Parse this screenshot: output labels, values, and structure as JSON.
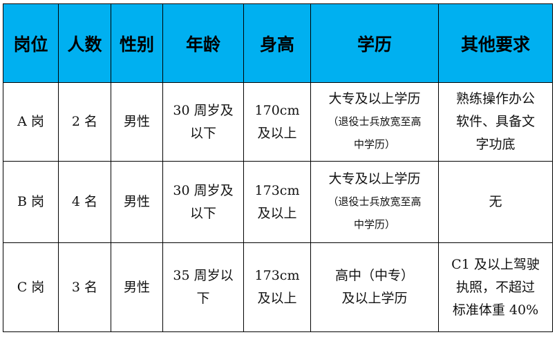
{
  "header_color": "#00B0F0",
  "headers": [
    "岗位",
    "人数",
    "性别",
    "年龄",
    "身高",
    "学历",
    "其他要求"
  ],
  "rows": [
    {
      "post": "A 岗",
      "count": "2 名",
      "gender": "男性",
      "age": [
        "30 周岁及",
        "以下"
      ],
      "height": [
        "170cm",
        "及以上"
      ],
      "education": [
        "大专及以上学历"
      ],
      "education_note": [
        "（退役士兵放宽至高",
        "中学历）"
      ],
      "other": [
        "熟练操作办公",
        "软件、具备文",
        "字功底"
      ]
    },
    {
      "post": "B 岗",
      "count": "4 名",
      "gender": "男性",
      "age": [
        "30 周岁及",
        "以下"
      ],
      "height": [
        "173cm",
        "及以上"
      ],
      "education": [
        "大专及以上学历"
      ],
      "education_note": [
        "（退役士兵放宽至高",
        "中学历）"
      ],
      "other": [
        "无"
      ]
    },
    {
      "post": "C 岗",
      "count": "3 名",
      "gender": "男性",
      "age": [
        "35 周岁以",
        "下"
      ],
      "height": [
        "173cm",
        "及以上"
      ],
      "education": [
        "高中（中专）",
        "及以上学历"
      ],
      "education_note": [],
      "other": [
        "C1 及以上驾驶",
        "执照，不超过",
        "标准体重 40%"
      ]
    }
  ]
}
